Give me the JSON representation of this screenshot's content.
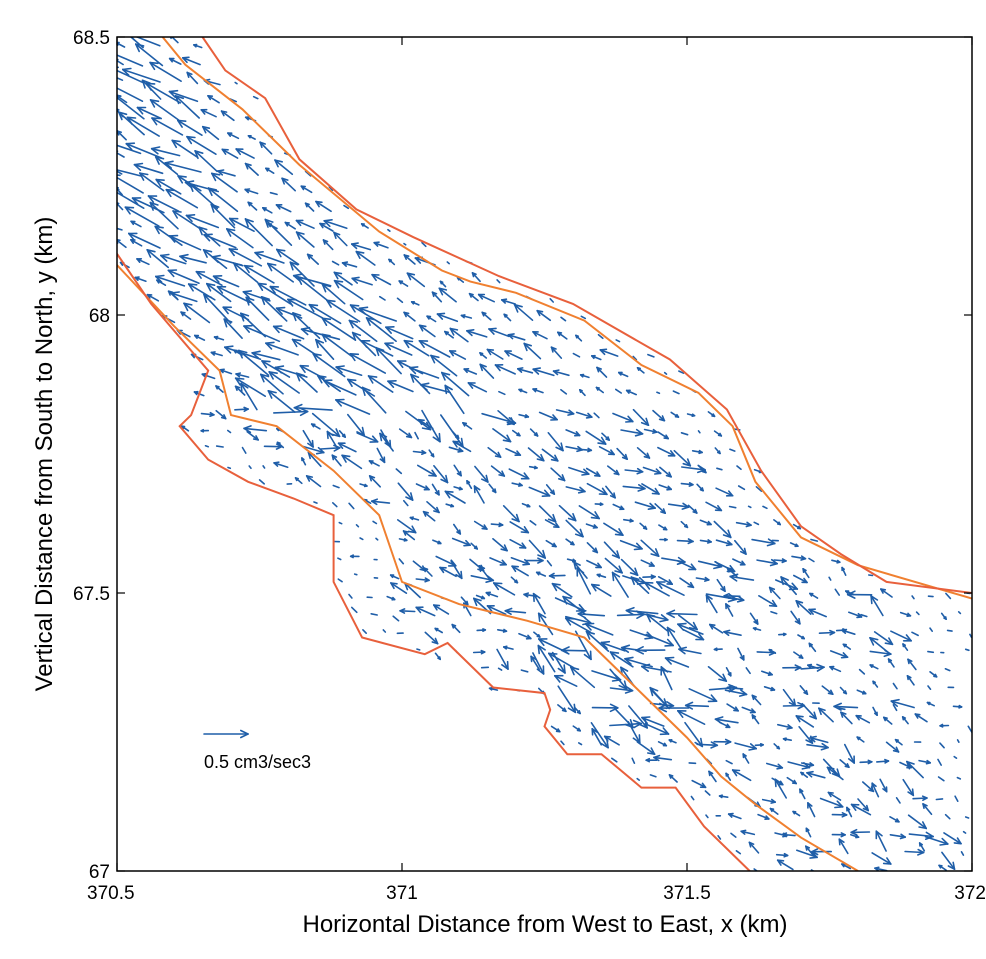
{
  "chart_data": {
    "type": "quiver",
    "title": "",
    "xlabel": "Horizontal Distance from West to East, x (km)",
    "ylabel": "Vertical Distance from South to North, y (km)",
    "xlim": [
      370.5,
      372
    ],
    "ylim": [
      67,
      68.5
    ],
    "x_ticks": [
      370.5,
      371,
      371.5,
      372
    ],
    "y_ticks": [
      67,
      67.5,
      68,
      68.5
    ],
    "x_tick_labels": [
      "370.5",
      "371",
      "371.5",
      "372"
    ],
    "y_tick_labels": [
      "67",
      "67.5",
      "68",
      "68.5"
    ],
    "grid": false,
    "colors": {
      "vectors": "#1f5ea8",
      "outer_contour": "#e8603c",
      "inner_contour": "#f08030"
    },
    "legend": {
      "label": "0.5 cm3/sec3",
      "placement": "lower-left"
    },
    "contours": {
      "outer_ne": [
        [
          370.65,
          68.5
        ],
        [
          370.69,
          68.44
        ],
        [
          370.76,
          68.39
        ],
        [
          370.82,
          68.28
        ],
        [
          370.92,
          68.19
        ],
        [
          371.02,
          68.14
        ],
        [
          371.17,
          68.07
        ],
        [
          371.3,
          68.02
        ],
        [
          371.47,
          67.92
        ],
        [
          371.57,
          67.83
        ],
        [
          371.63,
          67.72
        ],
        [
          371.7,
          67.62
        ],
        [
          371.77,
          67.57
        ],
        [
          371.85,
          67.52
        ],
        [
          372.0,
          67.5
        ]
      ],
      "outer_sw": [
        [
          370.5,
          68.11
        ],
        [
          370.56,
          68.02
        ],
        [
          370.66,
          67.9
        ],
        [
          370.63,
          67.82
        ],
        [
          370.61,
          67.8
        ],
        [
          370.66,
          67.74
        ],
        [
          370.73,
          67.7
        ],
        [
          370.81,
          67.67
        ],
        [
          370.88,
          67.64
        ],
        [
          370.88,
          67.52
        ],
        [
          370.93,
          67.42
        ],
        [
          371.04,
          67.39
        ],
        [
          371.08,
          67.41
        ],
        [
          371.16,
          67.33
        ],
        [
          371.25,
          67.32
        ],
        [
          371.26,
          67.29
        ],
        [
          371.25,
          67.26
        ],
        [
          371.29,
          67.21
        ],
        [
          371.35,
          67.21
        ],
        [
          371.42,
          67.15
        ],
        [
          371.48,
          67.15
        ],
        [
          371.53,
          67.08
        ],
        [
          371.61,
          67.0
        ]
      ],
      "inner_ne": [
        [
          370.58,
          68.5
        ],
        [
          370.62,
          68.45
        ],
        [
          370.72,
          68.37
        ],
        [
          370.82,
          68.27
        ],
        [
          370.96,
          68.15
        ],
        [
          371.07,
          68.08
        ],
        [
          371.12,
          68.06
        ],
        [
          371.2,
          68.04
        ],
        [
          371.32,
          67.99
        ],
        [
          371.42,
          67.91
        ],
        [
          371.52,
          67.86
        ],
        [
          371.58,
          67.8
        ],
        [
          371.62,
          67.7
        ],
        [
          371.7,
          67.6
        ],
        [
          371.8,
          67.55
        ],
        [
          372.0,
          67.49
        ]
      ],
      "inner_sw": [
        [
          370.5,
          68.09
        ],
        [
          370.6,
          67.98
        ],
        [
          370.68,
          67.9
        ],
        [
          370.7,
          67.82
        ],
        [
          370.78,
          67.8
        ],
        [
          370.88,
          67.72
        ],
        [
          370.96,
          67.64
        ],
        [
          371.0,
          67.52
        ],
        [
          371.1,
          67.48
        ],
        [
          371.22,
          67.45
        ],
        [
          371.32,
          67.42
        ],
        [
          371.42,
          67.32
        ],
        [
          371.5,
          67.24
        ],
        [
          371.56,
          67.17
        ],
        [
          371.62,
          67.12
        ],
        [
          371.7,
          67.06
        ],
        [
          371.8,
          67.0
        ]
      ]
    }
  }
}
